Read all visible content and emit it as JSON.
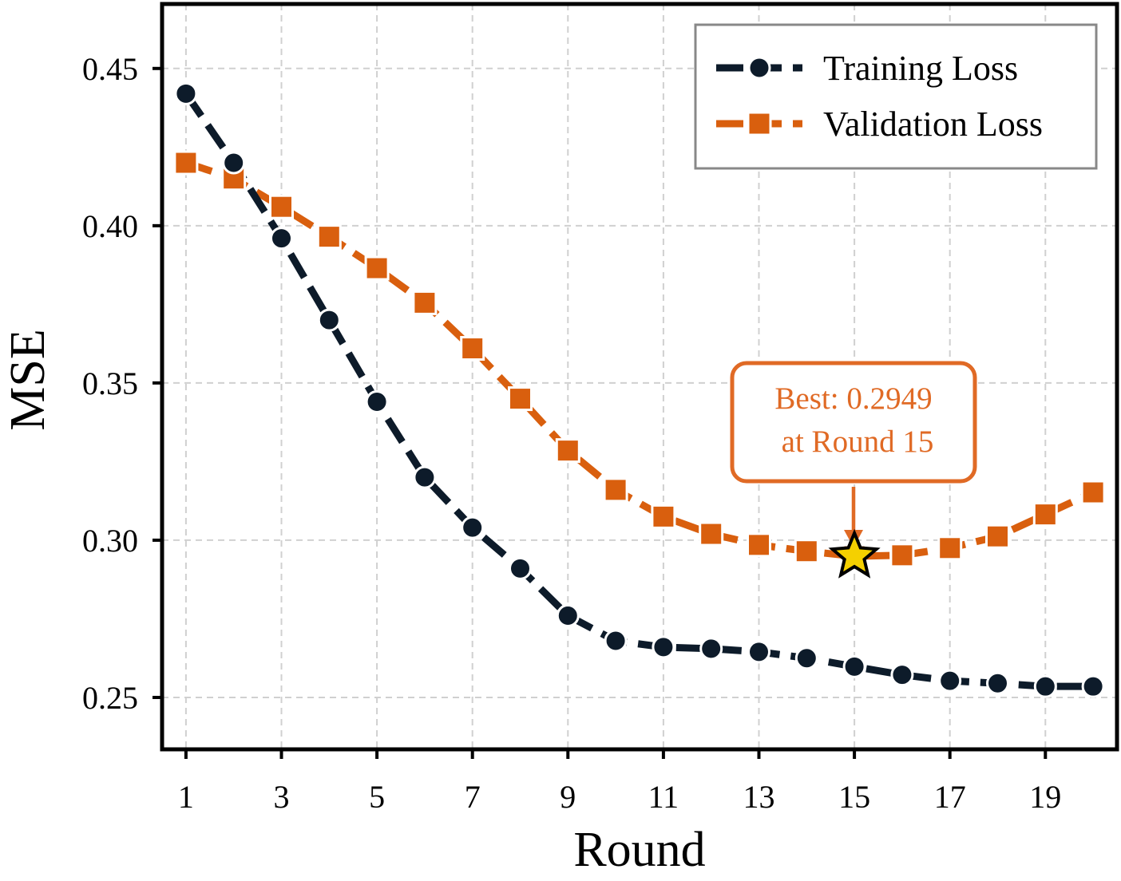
{
  "chart_data": {
    "type": "line",
    "title": "",
    "xlabel": "Round",
    "ylabel": "MSE",
    "xlim": [
      0.5,
      20.5
    ],
    "ylim": [
      0.2335,
      0.4705
    ],
    "xticks": [
      "1",
      "3",
      "5",
      "7",
      "9",
      "11",
      "13",
      "15",
      "17",
      "19"
    ],
    "yticks": [
      "0.25",
      "0.30",
      "0.35",
      "0.40",
      "0.45"
    ],
    "grid": true,
    "legend_position": "top-right",
    "x": [
      1,
      2,
      3,
      4,
      5,
      6,
      7,
      8,
      9,
      10,
      11,
      12,
      13,
      14,
      15,
      16,
      17,
      18,
      19,
      20
    ],
    "series": [
      {
        "name": "Training Loss",
        "color": "#0d1b2a",
        "marker": "circle",
        "values": [
          0.442,
          0.42,
          0.396,
          0.37,
          0.344,
          0.32,
          0.304,
          0.291,
          0.276,
          0.268,
          0.266,
          0.2655,
          0.2645,
          0.2625,
          0.2598,
          0.2572,
          0.2553,
          0.2545,
          0.2535,
          0.2535
        ]
      },
      {
        "name": "Validation Loss",
        "color": "#d95f0e",
        "marker": "square",
        "values": [
          0.42,
          0.415,
          0.406,
          0.3965,
          0.3865,
          0.3755,
          0.361,
          0.345,
          0.3285,
          0.316,
          0.3075,
          0.302,
          0.2985,
          0.2965,
          0.2949,
          0.2952,
          0.2975,
          0.3012,
          0.3082,
          0.3152
        ]
      }
    ],
    "annotation": {
      "line1": "Best: 0.2949",
      "line2": "at Round 15",
      "x": 15,
      "y": 0.2949,
      "color": "#e06a25",
      "star_color": "#f5d000"
    }
  }
}
